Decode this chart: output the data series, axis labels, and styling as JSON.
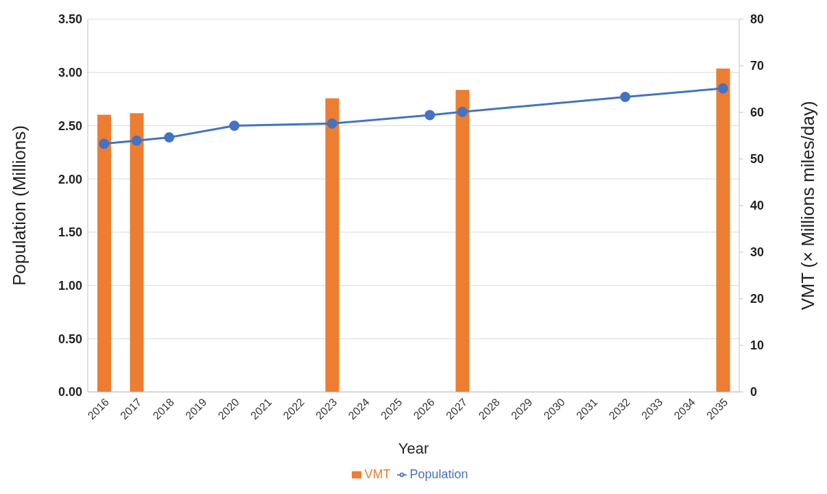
{
  "chart_data": {
    "type": "bar",
    "xlabel": "Year",
    "ylabel": "Population (Millions)",
    "y2label": "VMT (× Millions miles/day)",
    "categories": [
      "2016",
      "2017",
      "2018",
      "2019",
      "2020",
      "2021",
      "2022",
      "2023",
      "2024",
      "2025",
      "2026",
      "2027",
      "2028",
      "2029",
      "2030",
      "2031",
      "2032",
      "2033",
      "2034",
      "2035"
    ],
    "series": [
      {
        "name": "VMT",
        "axis": "y2",
        "color": "#ed7d31",
        "values": [
          59.5,
          59.8,
          null,
          null,
          null,
          null,
          null,
          63.0,
          null,
          null,
          null,
          64.8,
          null,
          null,
          null,
          null,
          null,
          null,
          null,
          69.4
        ]
      },
      {
        "name": "Population",
        "type": "line",
        "color": "#4472c4",
        "marker": "circle",
        "values": [
          2.33,
          2.36,
          2.39,
          null,
          2.5,
          null,
          null,
          2.52,
          null,
          null,
          2.6,
          2.63,
          null,
          null,
          null,
          null,
          2.77,
          null,
          null,
          2.85
        ]
      }
    ],
    "ylim": [
      0,
      3.5
    ],
    "yticks": [
      {
        "value": 0,
        "label": "0.00"
      },
      {
        "value": 0.5,
        "label": "0.50"
      },
      {
        "value": 1,
        "label": "1.00"
      },
      {
        "value": 1.5,
        "label": "1.50"
      },
      {
        "value": 2,
        "label": "2.00"
      },
      {
        "value": 2.5,
        "label": "2.50"
      },
      {
        "value": 3,
        "label": "3.00"
      },
      {
        "value": 3.5,
        "label": "3.50"
      }
    ],
    "y2lim": [
      0,
      80
    ],
    "y2ticks": [
      0,
      10,
      20,
      30,
      40,
      50,
      60,
      70,
      80
    ],
    "grid": "y",
    "legend": "bottom"
  }
}
